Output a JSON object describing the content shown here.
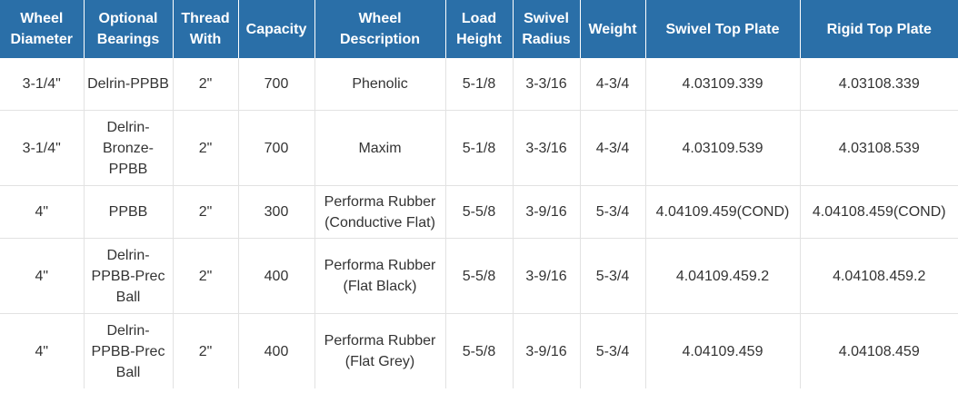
{
  "headers": [
    "Wheel Diameter",
    "Optional Bearings",
    "Thread With",
    "Capacity",
    "Wheel Description",
    "Load Height",
    "Swivel Radius",
    "Weight",
    "Swivel Top Plate",
    "Rigid Top Plate"
  ],
  "colors": {
    "header_bg": "#2a6fa8",
    "header_text": "#ffffff",
    "cell_text": "#333333",
    "grid_line": "#e2e2e2"
  },
  "rows": [
    {
      "wheel_diameter": "3-1/4\"",
      "optional_bearings": "Delrin-PPBB",
      "thread_with": "2\"",
      "capacity": "700",
      "wheel_description": "Phenolic",
      "load_height": "5-1/8",
      "swivel_radius": "3-3/16",
      "weight": "4-3/4",
      "swivel_top_plate": "4.03109.339",
      "rigid_top_plate": "4.03108.339"
    },
    {
      "wheel_diameter": "3-1/4\"",
      "optional_bearings": "Delrin-Bronze-PPBB",
      "thread_with": "2\"",
      "capacity": "700",
      "wheel_description": "Maxim",
      "load_height": "5-1/8",
      "swivel_radius": "3-3/16",
      "weight": "4-3/4",
      "swivel_top_plate": "4.03109.539",
      "rigid_top_plate": "4.03108.539"
    },
    {
      "wheel_diameter": "4\"",
      "optional_bearings": "PPBB",
      "thread_with": "2\"",
      "capacity": "300",
      "wheel_description": "Performa Rubber (Conductive Flat)",
      "load_height": "5-5/8",
      "swivel_radius": "3-9/16",
      "weight": "5-3/4",
      "swivel_top_plate": "4.04109.459(COND)",
      "rigid_top_plate": "4.04108.459(COND)"
    },
    {
      "wheel_diameter": "4\"",
      "optional_bearings": "Delrin-PPBB-Prec Ball",
      "thread_with": "2\"",
      "capacity": "400",
      "wheel_description": "Performa Rubber (Flat Black)",
      "load_height": "5-5/8",
      "swivel_radius": "3-9/16",
      "weight": "5-3/4",
      "swivel_top_plate": "4.04109.459.2",
      "rigid_top_plate": "4.04108.459.2"
    },
    {
      "wheel_diameter": "4\"",
      "optional_bearings": "Delrin-PPBB-Prec Ball",
      "thread_with": "2\"",
      "capacity": "400",
      "wheel_description": "Performa Rubber (Flat Grey)",
      "load_height": "5-5/8",
      "swivel_radius": "3-9/16",
      "weight": "5-3/4",
      "swivel_top_plate": "4.04109.459",
      "rigid_top_plate": "4.04108.459"
    }
  ]
}
